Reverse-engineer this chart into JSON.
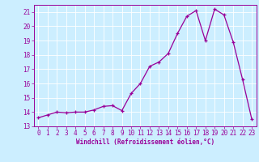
{
  "x": [
    0,
    1,
    2,
    3,
    4,
    5,
    6,
    7,
    8,
    9,
    10,
    11,
    12,
    13,
    14,
    15,
    16,
    17,
    18,
    19,
    20,
    21,
    22,
    23
  ],
  "y": [
    13.6,
    13.8,
    14.0,
    13.95,
    14.0,
    14.0,
    14.15,
    14.4,
    14.45,
    14.1,
    15.3,
    16.0,
    17.2,
    17.5,
    18.1,
    19.5,
    20.7,
    21.1,
    19.0,
    21.2,
    20.8,
    18.9,
    16.3,
    13.5
  ],
  "xlabel": "Windchill (Refroidissement éolien,°C)",
  "xlim": [
    -0.5,
    23.5
  ],
  "ylim": [
    13,
    21.5
  ],
  "yticks": [
    13,
    14,
    15,
    16,
    17,
    18,
    19,
    20,
    21
  ],
  "xticks": [
    0,
    1,
    2,
    3,
    4,
    5,
    6,
    7,
    8,
    9,
    10,
    11,
    12,
    13,
    14,
    15,
    16,
    17,
    18,
    19,
    20,
    21,
    22,
    23
  ],
  "line_color": "#990099",
  "marker": "+",
  "bg_color": "#cceeff",
  "grid_color": "#ffffff",
  "font_color": "#990099",
  "tick_fontsize": 5.5,
  "xlabel_fontsize": 5.5,
  "linewidth": 0.9,
  "markersize": 3.5,
  "markeredgewidth": 0.9
}
